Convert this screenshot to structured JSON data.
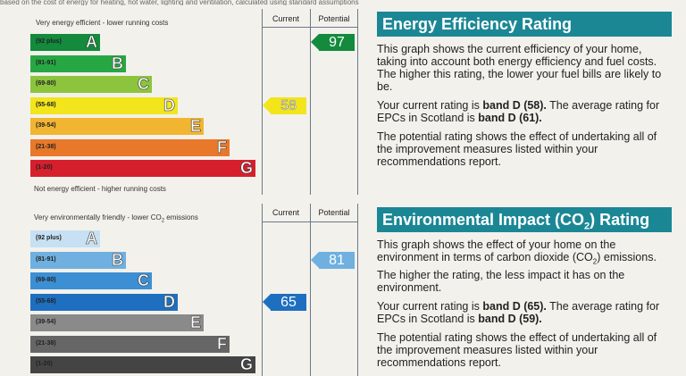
{
  "top_text": "based on the cost of energy for heating, hot water, lighting and ventilation, calculated using standard assumptions",
  "energy": {
    "top_caption": "Very energy efficient - lower running costs",
    "bottom_caption": "Not energy efficient - higher running costs",
    "header_current": "Current",
    "header_potential": "Potential",
    "bands": [
      {
        "range": "(92 plus)",
        "letter": "A",
        "color": "#138a3c"
      },
      {
        "range": "(81-91)",
        "letter": "B",
        "color": "#27a744"
      },
      {
        "range": "(69-80)",
        "letter": "C",
        "color": "#8cc43d"
      },
      {
        "range": "(55-68)",
        "letter": "D",
        "color": "#f2e51c"
      },
      {
        "range": "(39-54)",
        "letter": "E",
        "color": "#f2b531"
      },
      {
        "range": "(21-38)",
        "letter": "F",
        "color": "#e8782a"
      },
      {
        "range": "(1-20)",
        "letter": "G",
        "color": "#d61f2d"
      }
    ],
    "current": {
      "value": "58",
      "band": "D",
      "color": "#f2e51c"
    },
    "potential": {
      "value": "97",
      "band": "A",
      "color": "#138a3c"
    }
  },
  "environment": {
    "top_caption_prefix": "Very environmentally friendly - lower CO",
    "top_caption_sub": "2",
    "top_caption_suffix": " emissions",
    "header_current": "Current",
    "header_potential": "Potential",
    "bands": [
      {
        "range": "(92 plus)",
        "letter": "A",
        "color": "#c7e0f3"
      },
      {
        "range": "(81-91)",
        "letter": "B",
        "color": "#6fb0e0"
      },
      {
        "range": "(69-80)",
        "letter": "C",
        "color": "#3d8fd4"
      },
      {
        "range": "(55-68)",
        "letter": "D",
        "color": "#1e6fbf"
      },
      {
        "range": "(39-54)",
        "letter": "E",
        "color": "#8a8a8a"
      },
      {
        "range": "(21-38)",
        "letter": "F",
        "color": "#666666"
      },
      {
        "range": "(1-20)",
        "letter": "G",
        "color": "#444444"
      }
    ],
    "current": {
      "value": "65",
      "band": "D",
      "color": "#1e6fbf"
    },
    "potential": {
      "value": "81",
      "band": "B",
      "color": "#6fb0e0"
    }
  },
  "energy_info": {
    "title": "Energy Efficiency Rating",
    "p1": "This graph shows the current efficiency of your home, taking into account both energy efficiency and fuel costs. The higher this rating, the lower your fuel bills are likely to be.",
    "p2_prefix": "Your current rating is ",
    "p2_bold1": "band D (58).",
    "p2_mid": " The average rating for EPCs in Scotland is ",
    "p2_bold2": "band D (61).",
    "p3": "The potential rating shows the effect of undertaking all of the improvement measures listed within your recommendations report."
  },
  "env_info": {
    "title_prefix": "Environmental Impact (CO",
    "title_sub": "2",
    "title_suffix": ") Rating",
    "p1_prefix": "This graph shows the effect of your home on the environment in terms of carbon dioxide (CO",
    "p1_sub": "2",
    "p1_suffix": ") emissions. The higher the rating, the less impact it has on the environment.",
    "p2_prefix": "Your current rating is ",
    "p2_bold1": "band D (65).",
    "p2_mid": " The average rating for EPCs in Scotland is ",
    "p2_bold2": "band D (59).",
    "p3": "The potential rating shows the effect of undertaking all of the improvement measures listed within your recommendations report."
  }
}
